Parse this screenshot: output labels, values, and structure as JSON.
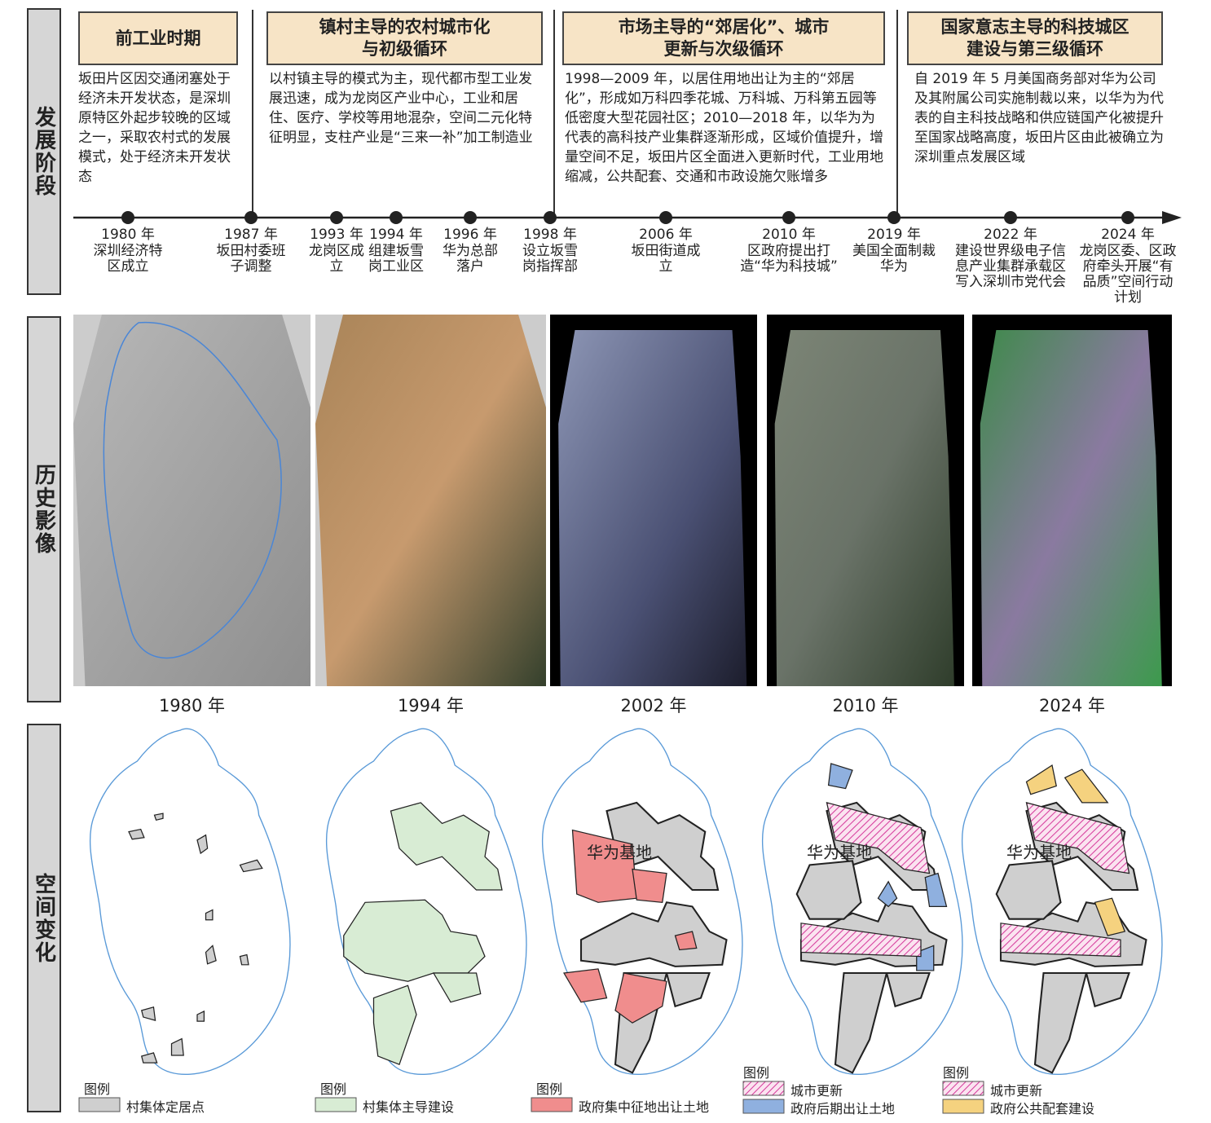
{
  "row_labels": [
    "发展阶段",
    "历史影像",
    "空间变化"
  ],
  "stages": [
    {
      "title": [
        "前工业时期"
      ],
      "text": "坂田片区因交通闭塞处于经济未开发状态，是深圳原特区外起步较晚的区域之一，采取农村式的发展模式，处于经济未开发状态"
    },
    {
      "title": [
        "镇村主导的农村城市化",
        "与初级循环"
      ],
      "text": "以村镇主导的模式为主，现代都市型工业发展迅速，成为龙岗区产业中心，工业和居住、医疗、学校等用地混杂，空间二元化特征明显，支柱产业是“三来一补”加工制造业"
    },
    {
      "title": [
        "市场主导的“郊居化”、城市",
        "更新与次级循环"
      ],
      "text": "1998—2009 年，以居住用地出让为主的“郊居化”，形成如万科四季花城、万科城、万科第五园等低密度大型花园社区；2010—2018 年，以华为为代表的高科技产业集群逐渐形成，区域价值提升，增量空间不足，坂田片区全面进入更新时代，工业用地缩减，公共配套、交通和市政设施欠账增多"
    },
    {
      "title": [
        "国家意志主导的科技城区",
        "建设与第三级循环"
      ],
      "text": "自 2019 年 5 月美国商务部对华为公司及其附属公司实施制裁以来，以华为为代表的自主科技战略和供应链国产化被提升至国家战略高度，坂田片区由此被确立为深圳重点发展区域"
    }
  ],
  "timeline": [
    {
      "year": "1980 年",
      "event": "深圳经济特区成立"
    },
    {
      "year": "1987 年",
      "event": "坂田村委班子调整"
    },
    {
      "year": "1993 年",
      "event": "龙岗区成立"
    },
    {
      "year": "1994 年",
      "event": "组建坂雪岗工业区"
    },
    {
      "year": "1996 年",
      "event": "华为总部落户"
    },
    {
      "year": "1998 年",
      "event": "设立坂雪岗指挥部"
    },
    {
      "year": "2006 年",
      "event": "坂田街道成立"
    },
    {
      "year": "2010 年",
      "event": "区政府提出打造“华为科技城”"
    },
    {
      "year": "2019 年",
      "event": "美国全面制裁华为"
    },
    {
      "year": "2022 年",
      "event": "建设世界级电子信息产业集群承载区写入深圳市党代会"
    },
    {
      "year": "2024 年",
      "event": "龙岗区委、区政府牵头开展“有品质”空间行动计划"
    }
  ],
  "images": [
    "1980 年",
    "1994 年",
    "2002 年",
    "2010 年",
    "2024 年"
  ],
  "maps": [
    {
      "legend_title": "图例",
      "legend": [
        "村集体定居点"
      ]
    },
    {
      "legend_title": "图例",
      "legend": [
        "村集体主导建设"
      ]
    },
    {
      "legend_title": "图例",
      "legend": [
        "政府集中征地出让土地"
      ],
      "label": "华为基地"
    },
    {
      "legend_title": "图例",
      "legend": [
        "城市更新",
        "政府后期出让土地"
      ],
      "label": "华为基地"
    },
    {
      "legend_title": "图例",
      "legend": [
        "城市更新",
        "政府公共配套建设"
      ],
      "label": "华为基地"
    }
  ]
}
